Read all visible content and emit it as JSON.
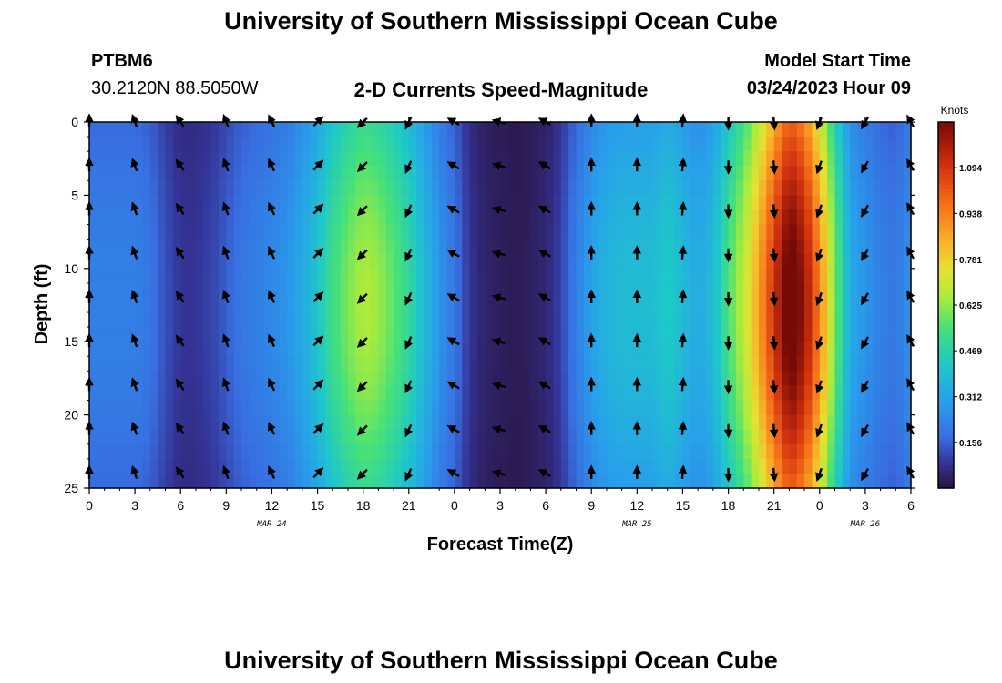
{
  "header": {
    "title": "University of Southern Mississippi Ocean Cube",
    "station": "PTBM6",
    "coords": "30.2120N  88.5050W",
    "subtitle": "2-D Currents Speed-Magnitude",
    "model_start_label": "Model Start Time",
    "model_start_value": "03/24/2023 Hour 09"
  },
  "footer": {
    "title": "University of Southern Mississippi Ocean Cube"
  },
  "chart_data": {
    "type": "heatmap",
    "title": "2-D Currents Speed-Magnitude",
    "xlabel": "Forecast Time(Z)",
    "ylabel": "Depth (ft)",
    "x_ticks": [
      "0",
      "3",
      "6",
      "9",
      "12",
      "15",
      "18",
      "21",
      "0",
      "3",
      "6",
      "9",
      "12",
      "15",
      "18",
      "21",
      "0",
      "3",
      "6"
    ],
    "x_range_hours": [
      0,
      54
    ],
    "date_labels": [
      {
        "text": "MAR 24",
        "hour": 12
      },
      {
        "text": "MAR 25",
        "hour": 36
      },
      {
        "text": "MAR 26",
        "hour": 51
      }
    ],
    "y_ticks": [
      "0",
      "5",
      "10",
      "15",
      "20",
      "25"
    ],
    "y_range_ft": [
      0,
      25
    ],
    "colorbar": {
      "unit": "Knots",
      "ticks": [
        "0.156",
        "0.312",
        "0.469",
        "0.625",
        "0.781",
        "0.938",
        "1.094"
      ],
      "range": [
        0,
        1.25
      ]
    },
    "speed_timeseries_knots": {
      "hours": [
        0,
        3,
        4,
        5,
        6,
        7,
        8,
        9,
        10,
        11,
        12,
        13,
        14,
        15,
        16,
        17,
        18,
        19,
        20,
        21,
        22,
        23,
        24,
        25,
        26,
        27,
        28,
        29,
        30,
        31,
        32,
        33,
        34,
        35,
        36,
        37,
        38,
        39,
        40,
        41,
        42,
        43,
        44,
        45,
        46,
        47,
        48,
        49,
        50,
        51,
        52,
        53,
        54
      ],
      "values": [
        0.2,
        0.2,
        0.18,
        0.12,
        0.08,
        0.08,
        0.1,
        0.14,
        0.18,
        0.2,
        0.22,
        0.25,
        0.3,
        0.38,
        0.48,
        0.55,
        0.6,
        0.58,
        0.52,
        0.45,
        0.35,
        0.25,
        0.18,
        0.08,
        0.04,
        0.03,
        0.02,
        0.03,
        0.05,
        0.1,
        0.2,
        0.28,
        0.33,
        0.35,
        0.35,
        0.35,
        0.4,
        0.35,
        0.3,
        0.35,
        0.5,
        0.62,
        0.8,
        1.0,
        1.2,
        1.1,
        0.85,
        0.55,
        0.3,
        0.25,
        0.2,
        0.18,
        0.25
      ]
    },
    "depth_profile_knots": {
      "depth_ft": [
        0,
        25
      ],
      "note": "speed roughly uniform with depth, slightly weaker near surface and bottom"
    },
    "vector_grid": {
      "hours": [
        0,
        3,
        6,
        9,
        12,
        15,
        18,
        21,
        24,
        27,
        30,
        33,
        36,
        39,
        42,
        45,
        48,
        51,
        54
      ],
      "depths_ft": [
        0,
        3,
        6,
        9,
        12,
        15,
        18,
        21,
        24
      ]
    },
    "direction_deg_by_hour": [
      0,
      -20,
      -35,
      -20,
      -25,
      45,
      225,
      205,
      300,
      285,
      300,
      0,
      0,
      5,
      180,
      175,
      200,
      210,
      330
    ]
  }
}
